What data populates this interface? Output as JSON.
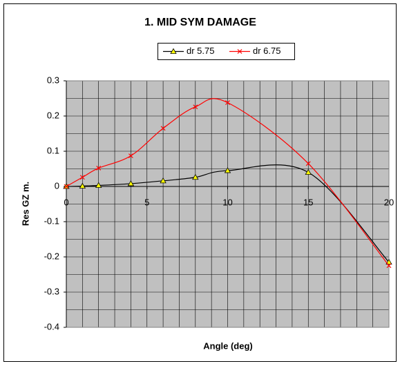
{
  "chart_data": {
    "type": "line",
    "title": "1. MID SYM DAMAGE",
    "x_label": "Angle (deg)",
    "y_label": "Res GZ m.",
    "x": [
      0,
      1,
      2,
      4,
      6,
      8,
      10,
      15,
      20
    ],
    "series": [
      {
        "name": "dr 5.75",
        "color": "#000000",
        "marker": "triangle",
        "marker_color": "#ffff00",
        "values": [
          0,
          0.001,
          0.003,
          0.008,
          0.016,
          0.026,
          0.045,
          0.04,
          -0.215
        ]
      },
      {
        "name": "dr 6.75",
        "color": "#ff0000",
        "marker": "x",
        "values": [
          0,
          0.026,
          0.052,
          0.087,
          0.165,
          0.226,
          0.238,
          0.065,
          -0.225
        ]
      }
    ],
    "xlim": [
      0,
      20
    ],
    "xticks": [
      0,
      5,
      10,
      15,
      20
    ],
    "ylim": [
      -0.4,
      0.3
    ],
    "yticks": [
      -0.4,
      -0.3,
      -0.2,
      -0.1,
      0,
      0.1,
      0.2,
      0.3
    ],
    "grid": true,
    "legend": "top",
    "smooth": true
  }
}
